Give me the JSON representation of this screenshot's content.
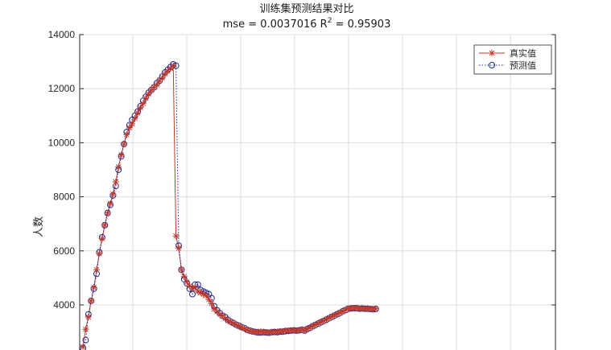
{
  "chart_data": {
    "type": "line",
    "title_line1": "训练集预测结果对比",
    "title_line2_prefix": "mse = 0.0037016 R",
    "title_line2_sup": "2",
    "title_line2_suffix": " = 0.95903",
    "ylabel": "人数",
    "ylim": [
      2200,
      14000
    ],
    "yticks": [
      "4000",
      "6000",
      "8000",
      "10000",
      "12000",
      "14000"
    ],
    "grid": true,
    "legend_position": "top-right",
    "colors": {
      "actual": "#c0392b",
      "predicted": "#1f2a8f"
    },
    "x": [
      2,
      3,
      4,
      5,
      6,
      7,
      8,
      9,
      10,
      11,
      12,
      13,
      14,
      15,
      16,
      17,
      18,
      19,
      20,
      21,
      22,
      23,
      24,
      25,
      26,
      27,
      28,
      29,
      30,
      31,
      32,
      33,
      34,
      35,
      36,
      37,
      38,
      39,
      40,
      41,
      42,
      43,
      44,
      45,
      46,
      47,
      48,
      49,
      50,
      51,
      52,
      53,
      54,
      55,
      56,
      57,
      58,
      59,
      60,
      61,
      62,
      63,
      64,
      65,
      66,
      67,
      68,
      69,
      70,
      71,
      72,
      73,
      74,
      75,
      76,
      77,
      78,
      79,
      80,
      81,
      82,
      83,
      84,
      85,
      86,
      87,
      88,
      89,
      90,
      91,
      92,
      93,
      94,
      95,
      96,
      97,
      98,
      99,
      100,
      101,
      102,
      103,
      104,
      105,
      106,
      107,
      108,
      109
    ],
    "series": [
      {
        "name": "真实值",
        "marker": "asterisk",
        "values": [
          2450,
          3100,
          3550,
          4150,
          4650,
          5300,
          5900,
          6450,
          6950,
          7400,
          7750,
          8100,
          8550,
          9100,
          9550,
          9950,
          10300,
          10550,
          10700,
          10900,
          11100,
          11300,
          11450,
          11650,
          11800,
          11950,
          12050,
          12150,
          12300,
          12400,
          12550,
          12650,
          12750,
          12850,
          6550,
          6100,
          5300,
          5050,
          4850,
          4700,
          4600,
          4650,
          4500,
          4450,
          4400,
          4350,
          4200,
          4050,
          3850,
          3750,
          3650,
          3600,
          3500,
          3420,
          3380,
          3320,
          3270,
          3210,
          3170,
          3130,
          3070,
          3040,
          3020,
          3000,
          3000,
          3020,
          3000,
          2990,
          2980,
          3000,
          3010,
          3010,
          3020,
          3020,
          3050,
          3040,
          3060,
          3070,
          3050,
          3070,
          3090,
          3050,
          3120,
          3170,
          3220,
          3270,
          3320,
          3370,
          3420,
          3470,
          3520,
          3570,
          3620,
          3670,
          3720,
          3770,
          3820,
          3870,
          3880,
          3880,
          3890,
          3870,
          3870,
          3860,
          3870,
          3850,
          3850,
          3860
        ]
      },
      {
        "name": "预测值",
        "marker": "circle",
        "values": [
          2400,
          2700,
          3650,
          4150,
          4600,
          5150,
          5950,
          6500,
          6950,
          7400,
          7700,
          8050,
          8400,
          9000,
          9500,
          9950,
          10400,
          10650,
          10850,
          11000,
          11150,
          11350,
          11550,
          11700,
          11850,
          11950,
          12050,
          12200,
          12300,
          12450,
          12600,
          12700,
          12800,
          12900,
          12850,
          6200,
          5300,
          4950,
          4800,
          4600,
          4400,
          4750,
          4750,
          4550,
          4500,
          4450,
          4400,
          4250,
          3950,
          3800,
          3700,
          3600,
          3550,
          3450,
          3380,
          3330,
          3270,
          3230,
          3180,
          3140,
          3080,
          3050,
          3020,
          3000,
          2980,
          2980,
          2990,
          2980,
          2970,
          2990,
          3000,
          2990,
          3010,
          3010,
          3030,
          3040,
          3050,
          3060,
          3050,
          3060,
          3080,
          3050,
          3110,
          3150,
          3210,
          3260,
          3310,
          3360,
          3410,
          3460,
          3510,
          3560,
          3610,
          3660,
          3710,
          3770,
          3810,
          3860,
          3870,
          3880,
          3880,
          3860,
          3870,
          3860,
          3860,
          3850,
          3840,
          3850
        ]
      }
    ]
  }
}
